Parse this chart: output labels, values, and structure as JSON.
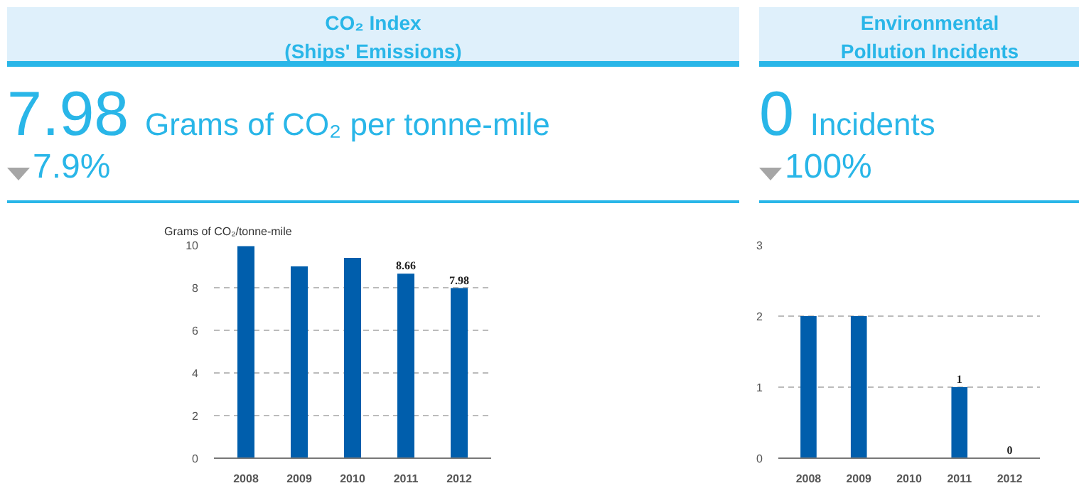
{
  "chart_data": [
    {
      "type": "bar",
      "title": "CO₂ Index\n(Ships' Emissions)",
      "subtitle": "7.98 Grams of CO₂ per tonne-mile",
      "annotations": [
        "7.9%"
      ],
      "ylabel": "Grams of CO₂/tonne-mile",
      "categories": [
        "2008",
        "2009",
        "2010",
        "2011",
        "2012"
      ],
      "values": [
        9.95,
        9.0,
        9.4,
        8.66,
        7.98
      ],
      "value_labels": [
        null,
        null,
        null,
        "8.66",
        "7.98"
      ],
      "color": "#005eac",
      "ylim": [
        0,
        10
      ],
      "yticks": [
        0,
        2,
        4,
        6,
        8,
        10
      ],
      "grid": "y"
    },
    {
      "type": "bar",
      "title": "Environmental\nPollution Incidents",
      "subtitle": "0 Incidents",
      "annotations": [
        "100%"
      ],
      "categories": [
        "2008",
        "2009",
        "2010",
        "2011",
        "2012"
      ],
      "values": [
        2,
        2,
        0,
        1,
        0
      ],
      "value_labels": [
        null,
        null,
        null,
        "1",
        "0"
      ],
      "color": "#005eac",
      "ylim": [
        0,
        3
      ],
      "yticks": [
        0,
        1,
        2,
        3
      ],
      "grid": "y"
    }
  ]
}
